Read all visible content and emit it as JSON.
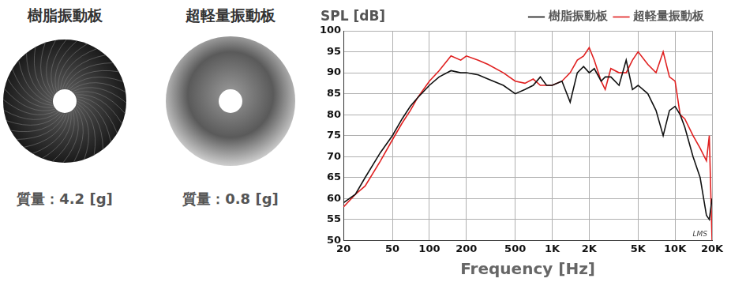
{
  "images": [
    {
      "title": "樹脂振動板",
      "caption": "質量：4.2 [g]"
    },
    {
      "title": "超軽量振動板",
      "caption": "質量：0.8 [g]"
    }
  ],
  "chart_data": {
    "type": "line",
    "y_label": "SPL [dB]",
    "x_label": "Frequency [Hz]",
    "annotation": "LMS",
    "log": "x",
    "grid": true,
    "legend": "top",
    "x": [
      20,
      25,
      30,
      40,
      50,
      60,
      70,
      80,
      100,
      120,
      150,
      180,
      200,
      250,
      300,
      400,
      500,
      600,
      700,
      800,
      900,
      1000,
      1200,
      1400,
      1600,
      1800,
      2000,
      2200,
      2500,
      2700,
      3000,
      3500,
      4000,
      4500,
      5000,
      6000,
      7000,
      8000,
      9000,
      10000,
      11000,
      12000,
      14000,
      16000,
      18000,
      19000,
      20000
    ],
    "series": [
      {
        "name": "樹脂振動板",
        "color": "#111111",
        "values": [
          59,
          61,
          65,
          71,
          75,
          79,
          82,
          84,
          87,
          89,
          90.5,
          90,
          90,
          89.5,
          88.5,
          87,
          85,
          86,
          87,
          89,
          87,
          87,
          88,
          83,
          90,
          91.5,
          90,
          91,
          88,
          89,
          89,
          87,
          93,
          86,
          87,
          85,
          81,
          75,
          81,
          82,
          80,
          77,
          70,
          65,
          56,
          55,
          60
        ]
      },
      {
        "name": "超軽量振動板",
        "color": "#e02020",
        "values": [
          58,
          61,
          63,
          69,
          74,
          78,
          81,
          84,
          88,
          90.5,
          94,
          93,
          94,
          93,
          92,
          90,
          88,
          87.5,
          88.5,
          87,
          87,
          87,
          88,
          90,
          93,
          94,
          96,
          93,
          88,
          86,
          91,
          90,
          90,
          93,
          95,
          92,
          90,
          95,
          89,
          88,
          80,
          79,
          75,
          72,
          69,
          75,
          50
        ]
      }
    ],
    "xlim": [
      20,
      20000
    ],
    "xticks": [
      20,
      50,
      100,
      200,
      500,
      {
        "value": 1000,
        "label": "1K"
      },
      {
        "value": 2000,
        "label": "2K"
      },
      {
        "value": 5000,
        "label": "5K"
      },
      {
        "value": 10000,
        "label": "10K"
      },
      {
        "value": 20000,
        "label": "20K"
      }
    ],
    "ylim": [
      50,
      100
    ],
    "yticks": [
      50,
      55,
      60,
      65,
      70,
      75,
      80,
      85,
      90,
      95,
      100
    ]
  }
}
